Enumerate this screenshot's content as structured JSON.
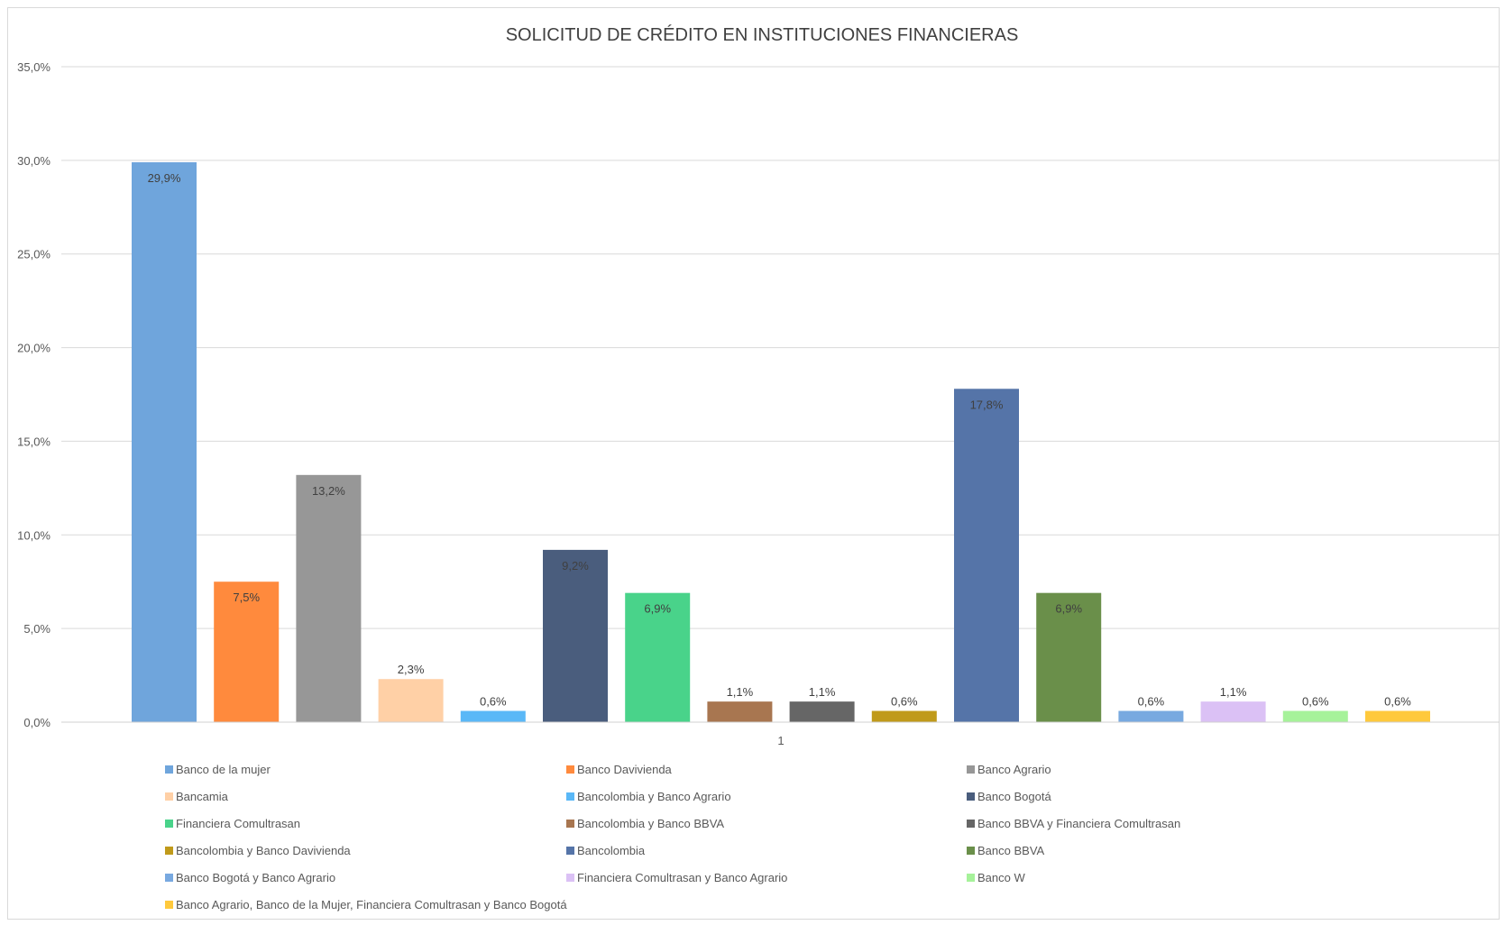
{
  "chart_data": {
    "type": "bar",
    "title": "SOLICITUD DE CRÉDITO EN INSTITUCIONES FINANCIERAS",
    "xlabel": "",
    "ylabel": "",
    "x_tick_label": "1",
    "ylim": [
      0,
      35
    ],
    "y_ticks": [
      "0,0%",
      "5,0%",
      "10,0%",
      "15,0%",
      "20,0%",
      "25,0%",
      "30,0%",
      "35,0%"
    ],
    "y_tick_values": [
      0,
      5,
      10,
      15,
      20,
      25,
      30,
      35
    ],
    "grid": true,
    "legend_position": "bottom",
    "series": [
      {
        "name": "Banco de la mujer",
        "value": 29.9,
        "label": "29,9%",
        "color": "#6fa5dc"
      },
      {
        "name": "Banco Davivienda",
        "value": 7.5,
        "label": "7,5%",
        "color": "#ff8a3d"
      },
      {
        "name": "Banco Agrario",
        "value": 13.2,
        "label": "13,2%",
        "color": "#979797"
      },
      {
        "name": "Bancamia",
        "value": 2.3,
        "label": "2,3%",
        "color": "#ffd0a6"
      },
      {
        "name": "Bancolombia y Banco Agrario",
        "value": 0.6,
        "label": "0,6%",
        "color": "#5ab8f7"
      },
      {
        "name": "Banco Bogotá",
        "value": 9.2,
        "label": "9,2%",
        "color": "#4a5d7d"
      },
      {
        "name": "Financiera Comultrasan",
        "value": 6.9,
        "label": "6,9%",
        "color": "#49d38a"
      },
      {
        "name": "Bancolombia y Banco BBVA",
        "value": 1.1,
        "label": "1,1%",
        "color": "#a87650"
      },
      {
        "name": "Banco BBVA y Financiera Comultrasan",
        "value": 1.1,
        "label": "1,1%",
        "color": "#666666"
      },
      {
        "name": "Bancolombia y Banco Davivienda",
        "value": 0.6,
        "label": "0,6%",
        "color": "#c09a1a"
      },
      {
        "name": "Bancolombia",
        "value": 17.8,
        "label": "17,8%",
        "color": "#5574a8"
      },
      {
        "name": "Banco BBVA",
        "value": 6.9,
        "label": "6,9%",
        "color": "#6a8f4a"
      },
      {
        "name": "Banco Bogotá y Banco Agrario",
        "value": 0.6,
        "label": "0,6%",
        "color": "#78a9e0"
      },
      {
        "name": "Financiera Comultrasan y Banco Agrario",
        "value": 1.1,
        "label": "1,1%",
        "color": "#dbc1f5"
      },
      {
        "name": "Banco W",
        "value": 0.6,
        "label": "0,6%",
        "color": "#a6f29a"
      },
      {
        "name": "Banco Agrario, Banco de la Mujer, Financiera Comultrasan y Banco Bogotá",
        "value": 0.6,
        "label": "0,6%",
        "color": "#ffc93c"
      }
    ]
  }
}
